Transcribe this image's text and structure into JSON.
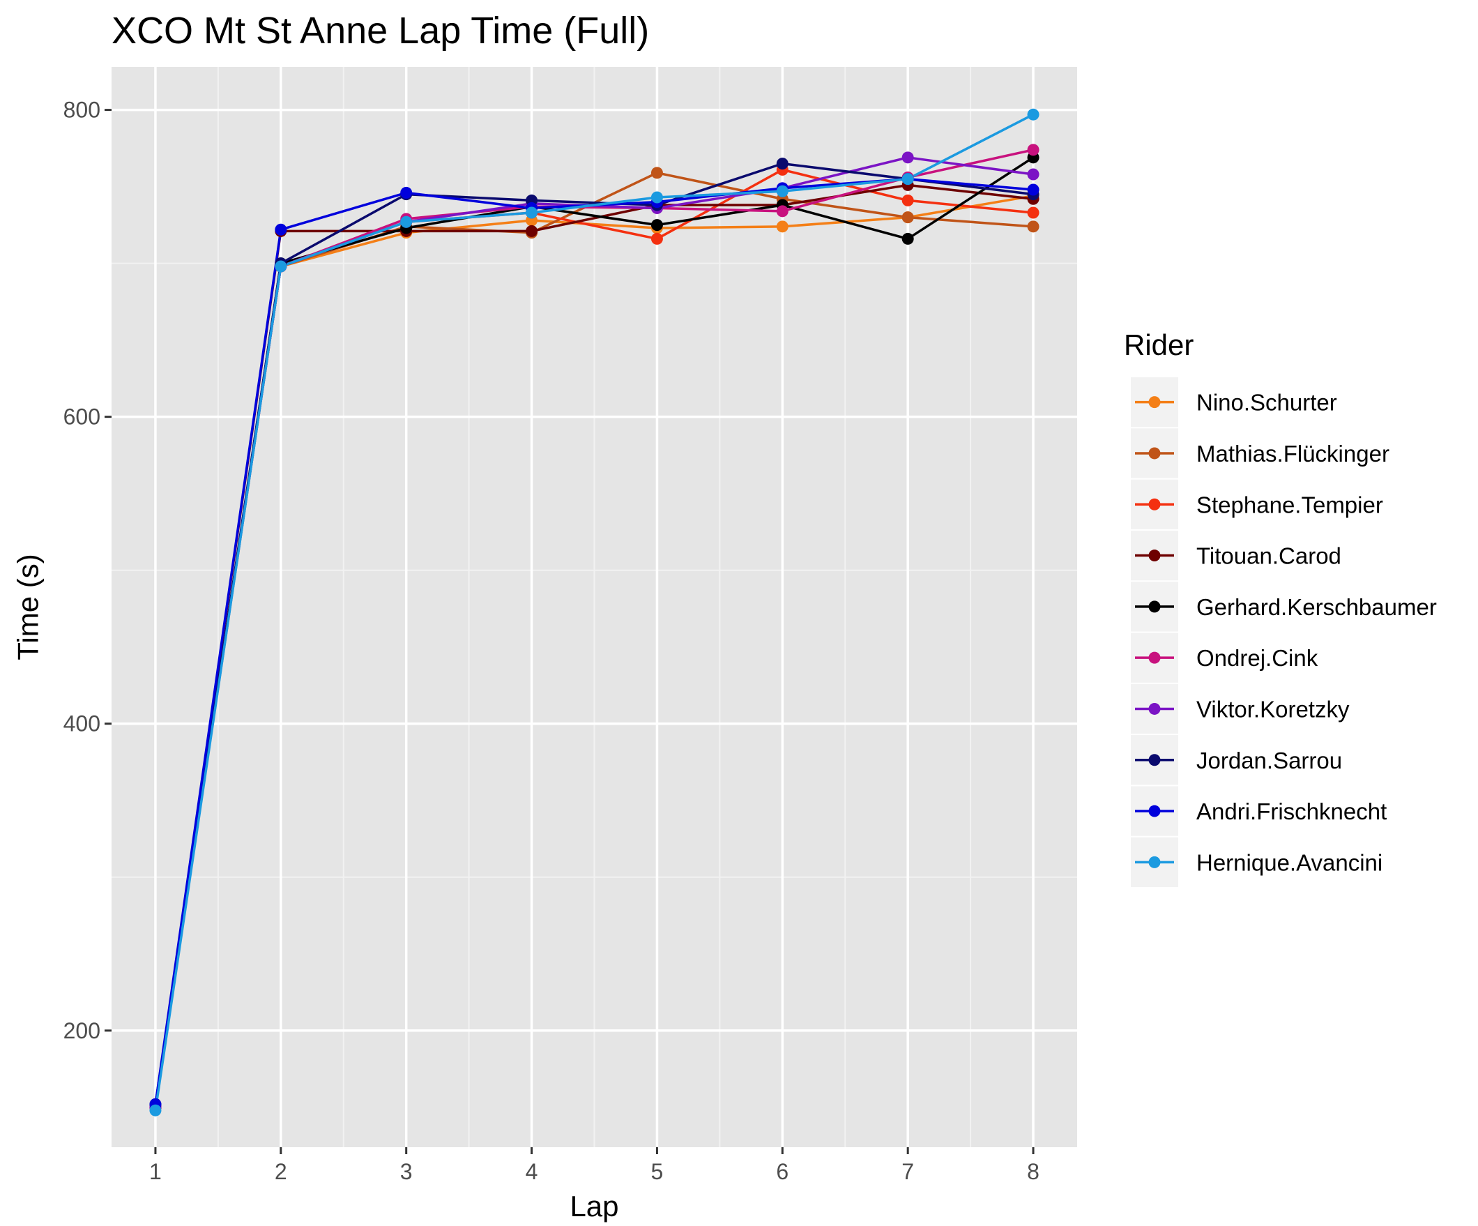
{
  "chart_data": {
    "type": "line",
    "title": "XCO Mt St Anne Lap Time (Full)",
    "xlabel": "Lap",
    "ylabel": "Time (s)",
    "x": [
      1,
      2,
      3,
      4,
      5,
      6,
      7,
      8
    ],
    "x_ticks": [
      "1",
      "2",
      "3",
      "4",
      "5",
      "6",
      "7",
      "8"
    ],
    "y_ticks": [
      200,
      400,
      600,
      800
    ],
    "y_tick_labels": [
      "200",
      "400",
      "600",
      "800"
    ],
    "xlim": [
      0.65,
      8.35
    ],
    "ylim": [
      124,
      828
    ],
    "grid": true,
    "legend": {
      "title": "Rider",
      "position": "right"
    },
    "series": [
      {
        "name": "Nino.Schurter",
        "color": "#F47F17",
        "values": [
          150,
          698,
          720,
          728,
          723,
          724,
          730,
          744
        ]
      },
      {
        "name": "Mathias.Flückinger",
        "color": "#C05418",
        "values": [
          150,
          698,
          724,
          720,
          759,
          742,
          730,
          724
        ]
      },
      {
        "name": "Stephane.Tempier",
        "color": "#F43010",
        "values": [
          150,
          698,
          727,
          733,
          716,
          761,
          741,
          733
        ]
      },
      {
        "name": "Titouan.Carod",
        "color": "#6E0000",
        "values": [
          150,
          721,
          721,
          721,
          738,
          738,
          751,
          742
        ]
      },
      {
        "name": "Gerhard.Kerschbaumer",
        "color": "#000000",
        "values": [
          150,
          700,
          723,
          737,
          725,
          738,
          716,
          769
        ]
      },
      {
        "name": "Ondrej.Cink",
        "color": "#C8127E",
        "values": [
          150,
          698,
          729,
          737,
          736,
          734,
          756,
          774
        ]
      },
      {
        "name": "Viktor.Koretzky",
        "color": "#7B14C5",
        "values": [
          150,
          698,
          727,
          739,
          736,
          749,
          769,
          758
        ]
      },
      {
        "name": "Jordan.Sarrou",
        "color": "#0A0A6E",
        "values": [
          152,
          700,
          745,
          741,
          738,
          765,
          755,
          745
        ]
      },
      {
        "name": "Andri.Frischknecht",
        "color": "#0000DC",
        "values": [
          152,
          722,
          746,
          736,
          740,
          749,
          755,
          748
        ]
      },
      {
        "name": "Hernique.Avancini",
        "color": "#1B9AE0",
        "values": [
          148,
          698,
          727,
          733,
          743,
          747,
          755,
          797
        ]
      }
    ]
  }
}
